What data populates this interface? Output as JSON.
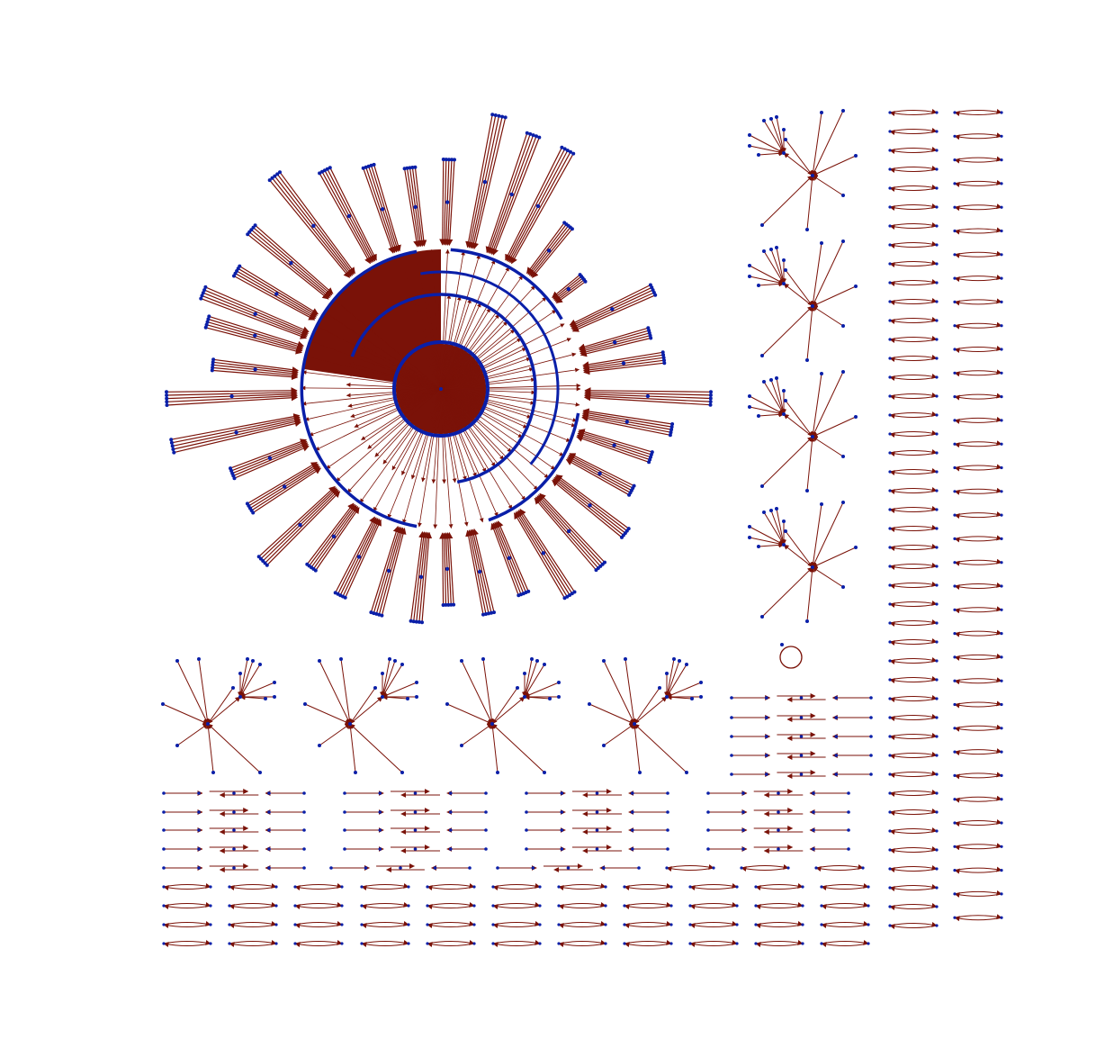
{
  "figure": {
    "kind": "directed network drawing",
    "colors": {
      "background": "#ffffff",
      "edge": "#7a1208",
      "node": "#0a1fa8"
    },
    "components": [
      {
        "name": "radial-tree-hub",
        "type": "radial tree",
        "count": 1
      },
      {
        "name": "star-clusters-right-column",
        "type": "double star",
        "count": 4
      },
      {
        "name": "self-loop-node",
        "type": "self loop",
        "count": 1
      },
      {
        "name": "star-clusters-bottom-row",
        "type": "double star",
        "count": 4
      },
      {
        "name": "chain-block-right",
        "type": "reciprocal chain",
        "count": 1
      },
      {
        "name": "chain-blocks-bottom",
        "type": "reciprocal chain",
        "count": 4
      },
      {
        "name": "reciprocal-pairs-grid",
        "type": "reciprocal pair",
        "count": 103
      }
    ]
  }
}
